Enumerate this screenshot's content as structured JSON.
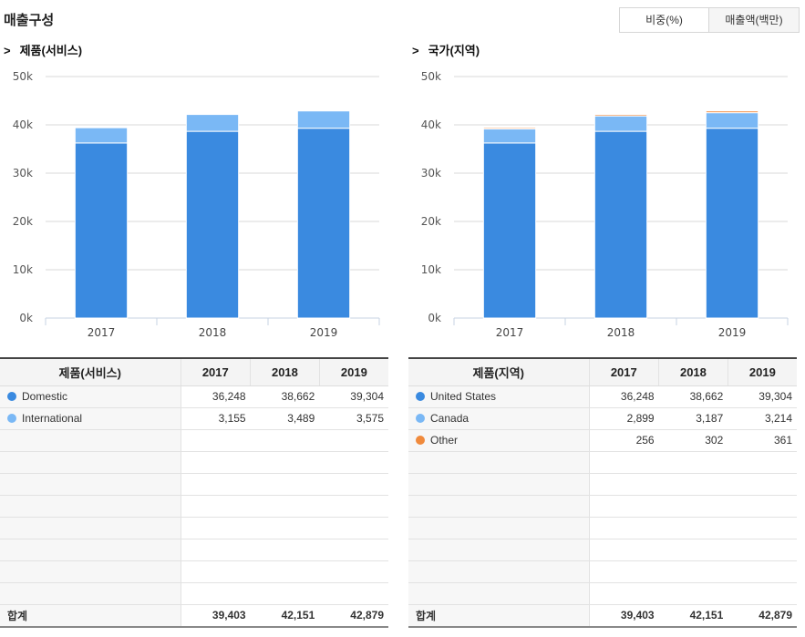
{
  "page_title": "매출구성",
  "toggle": {
    "ratio_label": "비중(%)",
    "amount_label": "매출액(백만)"
  },
  "sections": [
    {
      "arrow": ">",
      "title": "제품(서비스)"
    },
    {
      "arrow": ">",
      "title": "국가(지역)"
    }
  ],
  "chart_data": [
    {
      "type": "bar",
      "stacked": true,
      "title": "제품(서비스)",
      "categories": [
        "2017",
        "2018",
        "2019"
      ],
      "series": [
        {
          "name": "Domestic",
          "color": "#3a8ae0",
          "values": [
            36248,
            38662,
            39304
          ]
        },
        {
          "name": "International",
          "color": "#7ab8f5",
          "values": [
            3155,
            3489,
            3575
          ]
        }
      ],
      "ylim": [
        0,
        50000
      ],
      "yticks": [
        "0k",
        "10k",
        "20k",
        "30k",
        "40k",
        "50k"
      ],
      "grid": true
    },
    {
      "type": "bar",
      "stacked": true,
      "title": "국가(지역)",
      "categories": [
        "2017",
        "2018",
        "2019"
      ],
      "series": [
        {
          "name": "United States",
          "color": "#3a8ae0",
          "values": [
            36248,
            38662,
            39304
          ]
        },
        {
          "name": "Canada",
          "color": "#7ab8f5",
          "values": [
            2899,
            3187,
            3214
          ]
        },
        {
          "name": "Other",
          "color": "#f08a3c",
          "values": [
            256,
            302,
            361
          ]
        }
      ],
      "ylim": [
        0,
        50000
      ],
      "yticks": [
        "0k",
        "10k",
        "20k",
        "30k",
        "40k",
        "50k"
      ],
      "grid": true
    }
  ],
  "tables": [
    {
      "header": [
        "제품(서비스)",
        "2017",
        "2018",
        "2019"
      ],
      "rows": [
        {
          "name": "Domestic",
          "color": "#3a8ae0",
          "values": [
            "36,248",
            "38,662",
            "39,304"
          ]
        },
        {
          "name": "International",
          "color": "#7ab8f5",
          "values": [
            "3,155",
            "3,489",
            "3,575"
          ]
        }
      ],
      "total": {
        "label": "합계",
        "values": [
          "39,403",
          "42,151",
          "42,879"
        ]
      }
    },
    {
      "header": [
        "제품(지역)",
        "2017",
        "2018",
        "2019"
      ],
      "rows": [
        {
          "name": "United States",
          "color": "#3a8ae0",
          "values": [
            "36,248",
            "38,662",
            "39,304"
          ]
        },
        {
          "name": "Canada",
          "color": "#7ab8f5",
          "values": [
            "2,899",
            "3,187",
            "3,214"
          ]
        },
        {
          "name": "Other",
          "color": "#f08a3c",
          "values": [
            "256",
            "302",
            "361"
          ]
        }
      ],
      "total": {
        "label": "합계",
        "values": [
          "39,403",
          "42,151",
          "42,879"
        ]
      }
    }
  ]
}
